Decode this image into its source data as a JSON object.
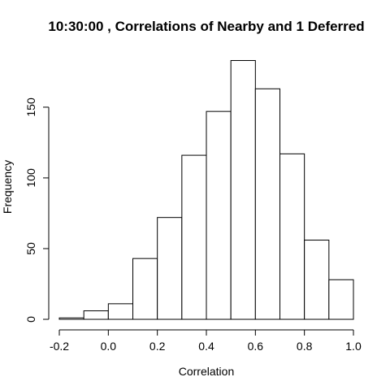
{
  "chart_data": {
    "type": "bar",
    "title": "10:30:00 , Correlations of Nearby and 1 Deferred",
    "xlabel": "Correlation",
    "ylabel": "Frequency",
    "bins": [
      {
        "from": -0.2,
        "to": -0.1,
        "count": 1
      },
      {
        "from": -0.1,
        "to": 0.0,
        "count": 6
      },
      {
        "from": 0.0,
        "to": 0.1,
        "count": 11
      },
      {
        "from": 0.1,
        "to": 0.2,
        "count": 43
      },
      {
        "from": 0.2,
        "to": 0.3,
        "count": 72
      },
      {
        "from": 0.3,
        "to": 0.4,
        "count": 116
      },
      {
        "from": 0.4,
        "to": 0.5,
        "count": 147
      },
      {
        "from": 0.5,
        "to": 0.6,
        "count": 183
      },
      {
        "from": 0.6,
        "to": 0.7,
        "count": 163
      },
      {
        "from": 0.7,
        "to": 0.8,
        "count": 117
      },
      {
        "from": 0.8,
        "to": 0.9,
        "count": 56
      },
      {
        "from": 0.9,
        "to": 1.0,
        "count": 28
      }
    ],
    "xlim": [
      -0.2,
      1.0
    ],
    "ylim": [
      0,
      185
    ],
    "x_ticks": [
      {
        "value": -0.2,
        "label": "-0.2"
      },
      {
        "value": 0.0,
        "label": "0.0"
      },
      {
        "value": 0.2,
        "label": "0.2"
      },
      {
        "value": 0.4,
        "label": "0.4"
      },
      {
        "value": 0.6,
        "label": "0.6"
      },
      {
        "value": 0.8,
        "label": "0.8"
      },
      {
        "value": 1.0,
        "label": "1.0"
      }
    ],
    "y_ticks": [
      {
        "value": 0,
        "label": "0"
      },
      {
        "value": 50,
        "label": "50"
      },
      {
        "value": 100,
        "label": "100"
      },
      {
        "value": 150,
        "label": "150"
      }
    ],
    "grid": false,
    "legend": "none",
    "bar_fill": "#ffffff",
    "bar_stroke": "#000000"
  }
}
